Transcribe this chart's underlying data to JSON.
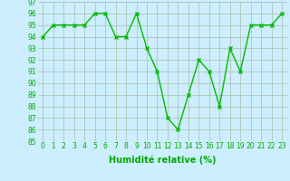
{
  "x": [
    0,
    1,
    2,
    3,
    4,
    5,
    6,
    7,
    8,
    9,
    10,
    11,
    12,
    13,
    14,
    15,
    16,
    17,
    18,
    19,
    20,
    21,
    22,
    23
  ],
  "y": [
    94,
    95,
    95,
    95,
    95,
    96,
    96,
    94,
    94,
    96,
    93,
    91,
    87,
    86,
    89,
    92,
    91,
    88,
    93,
    91,
    95,
    95,
    95,
    96
  ],
  "line_color": "#00bb00",
  "marker": "x",
  "marker_color": "#00bb00",
  "bg_color": "#cceeff",
  "grid_color": "#aabbaa",
  "xlabel": "Humidité relative (%)",
  "xlabel_color": "#00aa00",
  "ylim": [
    85,
    97
  ],
  "xlim": [
    -0.5,
    23.5
  ],
  "yticks": [
    85,
    86,
    87,
    88,
    89,
    90,
    91,
    92,
    93,
    94,
    95,
    96,
    97
  ],
  "xticks": [
    0,
    1,
    2,
    3,
    4,
    5,
    6,
    7,
    8,
    9,
    10,
    11,
    12,
    13,
    14,
    15,
    16,
    17,
    18,
    19,
    20,
    21,
    22,
    23
  ],
  "tick_color": "#00aa00",
  "tick_fontsize": 5.5,
  "xlabel_fontsize": 7,
  "line_width": 1.0,
  "marker_size": 3.5
}
